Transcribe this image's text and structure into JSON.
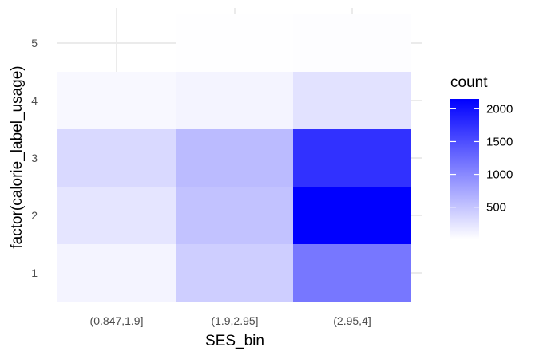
{
  "chart_data": {
    "type": "heatmap",
    "xlabel": "SES_bin",
    "ylabel": "factor(calorie_label_usage)",
    "x_categories": [
      "(0.847,1.9]",
      "(1.9,2.95]",
      "(2.95,4]"
    ],
    "y_categories": [
      "1",
      "2",
      "3",
      "4",
      "5"
    ],
    "cells": [
      {
        "x": "(0.847,1.9]",
        "y": "1",
        "count": 100
      },
      {
        "x": "(0.847,1.9]",
        "y": "2",
        "count": 230
      },
      {
        "x": "(0.847,1.9]",
        "y": "3",
        "count": 330
      },
      {
        "x": "(0.847,1.9]",
        "y": "4",
        "count": 70
      },
      {
        "x": "(1.9,2.95]",
        "y": "1",
        "count": 420
      },
      {
        "x": "(1.9,2.95]",
        "y": "2",
        "count": 520
      },
      {
        "x": "(1.9,2.95]",
        "y": "3",
        "count": 580
      },
      {
        "x": "(1.9,2.95]",
        "y": "4",
        "count": 100
      },
      {
        "x": "(1.9,2.95]",
        "y": "5",
        "count": 20
      },
      {
        "x": "(2.95,4]",
        "y": "1",
        "count": 1150
      },
      {
        "x": "(2.95,4]",
        "y": "2",
        "count": 2150
      },
      {
        "x": "(2.95,4]",
        "y": "3",
        "count": 1740
      },
      {
        "x": "(2.95,4]",
        "y": "4",
        "count": 250
      },
      {
        "x": "(2.95,4]",
        "y": "5",
        "count": 30
      }
    ],
    "legend": {
      "title": "count",
      "ticks": [
        "500",
        "1000",
        "1500",
        "2000"
      ],
      "tick_values": [
        500,
        1000,
        1500,
        2000
      ],
      "min": 10,
      "max": 2150,
      "low_color": "#ffffff",
      "high_color": "#0000ff",
      "placement": "right"
    },
    "grid": true
  }
}
